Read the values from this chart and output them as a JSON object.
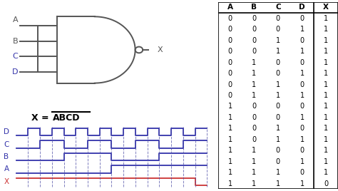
{
  "bg_color": "#ffffff",
  "gate_color": "#555555",
  "blue_color": "#3333aa",
  "red_color": "#cc3333",
  "dashed_color": "#5555aa",
  "truth_table": {
    "headers": [
      "A",
      "B",
      "C",
      "D",
      "X"
    ],
    "rows": [
      [
        0,
        0,
        0,
        0,
        1
      ],
      [
        0,
        0,
        0,
        1,
        1
      ],
      [
        0,
        0,
        1,
        0,
        1
      ],
      [
        0,
        0,
        1,
        1,
        1
      ],
      [
        0,
        1,
        0,
        0,
        1
      ],
      [
        0,
        1,
        0,
        1,
        1
      ],
      [
        0,
        1,
        1,
        0,
        1
      ],
      [
        0,
        1,
        1,
        1,
        1
      ],
      [
        1,
        0,
        0,
        0,
        1
      ],
      [
        1,
        0,
        0,
        1,
        1
      ],
      [
        1,
        0,
        1,
        0,
        1
      ],
      [
        1,
        0,
        1,
        1,
        1
      ],
      [
        1,
        1,
        0,
        0,
        1
      ],
      [
        1,
        1,
        0,
        1,
        1
      ],
      [
        1,
        1,
        1,
        0,
        1
      ],
      [
        1,
        1,
        1,
        1,
        0
      ]
    ]
  },
  "num_steps": 16,
  "input_label_colors": [
    "#555555",
    "#555555",
    "#3333aa",
    "#3333aa"
  ],
  "input_labels": [
    "A",
    "B",
    "C",
    "D"
  ]
}
